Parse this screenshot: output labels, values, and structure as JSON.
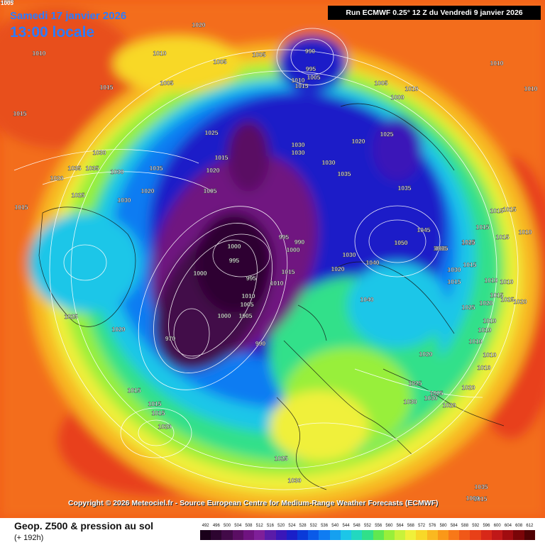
{
  "header": {
    "date": "Samedi 17 janvier 2026",
    "local_time": "13:00 locale",
    "run": "Run ECMWF 0.25° 12 Z du Vendredi 9 janvier 2026"
  },
  "copyright": "Copyright © 2026 Meteociel.fr - Source European Centre for Medium-Range Weather Forecasts (ECMWF)",
  "footer": {
    "title": "Geop. Z500 & pression au sol",
    "subtitle": "(+ 192h)"
  },
  "corner_label": "1005",
  "scale": {
    "labels": [
      "492",
      "496",
      "500",
      "504",
      "508",
      "512",
      "516",
      "520",
      "524",
      "528",
      "532",
      "536",
      "540",
      "544",
      "548",
      "552",
      "556",
      "560",
      "564",
      "568",
      "572",
      "576",
      "580",
      "584",
      "588",
      "592",
      "596",
      "600",
      "604",
      "608",
      "612"
    ],
    "colors": [
      "#1a001a",
      "#2d0530",
      "#420a48",
      "#5a0e63",
      "#6f1380",
      "#7f1f99",
      "#5a1ba8",
      "#3a16b8",
      "#1a1fc8",
      "#0a3ad8",
      "#0a5ae8",
      "#0f7cf2",
      "#15a0f0",
      "#1cc6e8",
      "#22d8c0",
      "#30e08a",
      "#60e850",
      "#98ef3a",
      "#c8f23a",
      "#f0f03a",
      "#f8d828",
      "#fab820",
      "#fa9818",
      "#f87818",
      "#f05818",
      "#e84018",
      "#d82818",
      "#c01818",
      "#a00c10",
      "#7a0508",
      "#500204"
    ]
  },
  "map": {
    "contour_labels": [
      {
        "t": "1005"
      },
      {
        "t": "1010"
      },
      {
        "t": "1020"
      },
      {
        "t": "1010"
      },
      {
        "t": "1005"
      },
      {
        "t": "1005"
      },
      {
        "t": "1015"
      },
      {
        "t": "1005"
      },
      {
        "t": "990"
      },
      {
        "t": "995"
      },
      {
        "t": "1010"
      },
      {
        "t": "1005"
      },
      {
        "t": "1015"
      },
      {
        "t": "1005"
      },
      {
        "t": "1010"
      },
      {
        "t": "1000"
      },
      {
        "t": "1010"
      },
      {
        "t": "1025"
      },
      {
        "t": "1020"
      },
      {
        "t": "1025"
      },
      {
        "t": "1030"
      },
      {
        "t": "1030"
      },
      {
        "t": "1030"
      },
      {
        "t": "1035"
      },
      {
        "t": "1035"
      },
      {
        "t": "1015"
      },
      {
        "t": "1020"
      },
      {
        "t": "1035"
      },
      {
        "t": "1030"
      },
      {
        "t": "1025"
      },
      {
        "t": "1020"
      },
      {
        "t": "1015"
      },
      {
        "t": "1005"
      },
      {
        "t": "1020"
      },
      {
        "t": "1030"
      },
      {
        "t": "1030"
      },
      {
        "t": "1035"
      },
      {
        "t": "1035"
      },
      {
        "t": "1050"
      },
      {
        "t": "1035"
      },
      {
        "t": "1025"
      },
      {
        "t": "1015"
      },
      {
        "t": "1015"
      },
      {
        "t": "1010"
      },
      {
        "t": "1015"
      },
      {
        "t": "1015"
      },
      {
        "t": "995"
      },
      {
        "t": "990"
      },
      {
        "t": "1000"
      },
      {
        "t": "1000"
      },
      {
        "t": "995"
      },
      {
        "t": "1000"
      },
      {
        "t": "995"
      },
      {
        "t": "1015"
      },
      {
        "t": "1010"
      },
      {
        "t": "1010"
      },
      {
        "t": "1000"
      },
      {
        "t": "1005"
      },
      {
        "t": "1005"
      },
      {
        "t": "970"
      },
      {
        "t": "990"
      },
      {
        "t": "1030"
      },
      {
        "t": "1020"
      },
      {
        "t": "1040"
      },
      {
        "t": "1040"
      },
      {
        "t": "1050"
      },
      {
        "t": "1045"
      },
      {
        "t": "1035"
      },
      {
        "t": "1030"
      },
      {
        "t": "1025"
      },
      {
        "t": "1015"
      },
      {
        "t": "1010"
      },
      {
        "t": "1025"
      },
      {
        "t": "1020"
      },
      {
        "t": "1010"
      },
      {
        "t": "1020"
      },
      {
        "t": "1025"
      },
      {
        "t": "1025"
      },
      {
        "t": "1030"
      },
      {
        "t": "1030"
      },
      {
        "t": "1020"
      },
      {
        "t": "1020"
      },
      {
        "t": "1025"
      },
      {
        "t": "1020"
      },
      {
        "t": "1015"
      },
      {
        "t": "1015"
      },
      {
        "t": "1015"
      },
      {
        "t": "1020"
      },
      {
        "t": "1025"
      },
      {
        "t": "1030"
      },
      {
        "t": "1035"
      },
      {
        "t": "1015"
      },
      {
        "t": "1010"
      },
      {
        "t": "1010"
      },
      {
        "t": "1015"
      },
      {
        "t": "1010"
      },
      {
        "t": "1010"
      },
      {
        "t": "1000"
      },
      {
        "t": "1020"
      },
      {
        "t": "1025"
      },
      {
        "t": "1015"
      },
      {
        "t": "1010"
      },
      {
        "t": "1015"
      },
      {
        "t": "1010"
      }
    ]
  }
}
